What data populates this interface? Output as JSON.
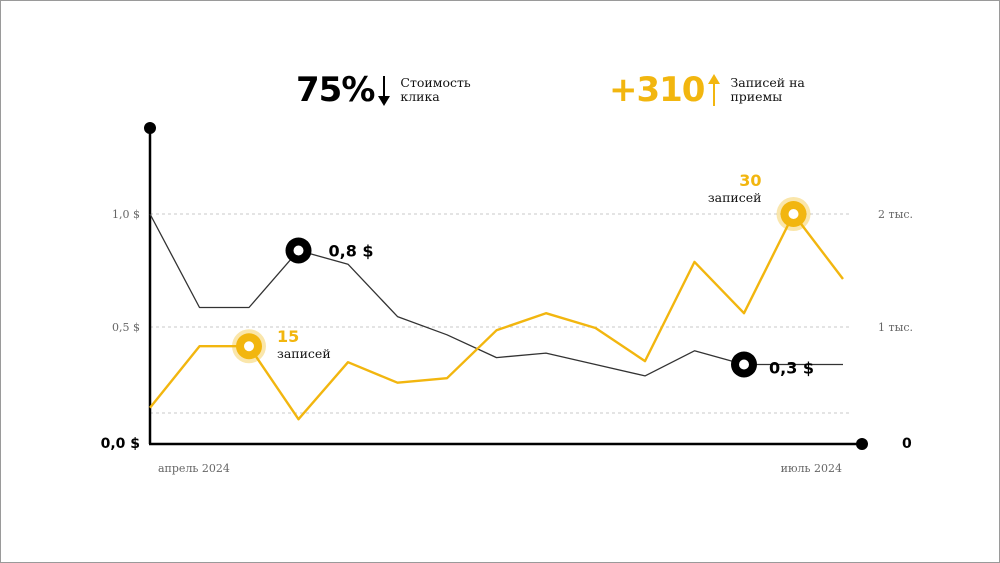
{
  "kpis": [
    {
      "value": "75%",
      "label": "Стоимость клика",
      "direction": "down",
      "color": "#000000"
    },
    {
      "value": "+310",
      "label": "Записей на приемы",
      "direction": "up",
      "color": "#f2b60f"
    }
  ],
  "chart_data": {
    "type": "line",
    "x_labels": [
      "апрель 2024",
      "июль 2024"
    ],
    "y_left": {
      "ticks": [
        "1,0 $",
        "0,5 $",
        "0,0 $"
      ],
      "range": [
        0,
        1.0
      ]
    },
    "y_right": {
      "ticks": [
        "2 тыс.",
        "1 тыс.",
        "0"
      ],
      "range": [
        0,
        2000
      ]
    },
    "grid": "dashed",
    "series": [
      {
        "axis": "left",
        "color": "#333333",
        "values": [
          1.0,
          0.59,
          0.59,
          0.84,
          0.78,
          0.55,
          0.47,
          0.37,
          0.39,
          0.34,
          0.29,
          0.4,
          0.34,
          0.34,
          0.34
        ]
      },
      {
        "axis": "right",
        "color": "#f2b60f",
        "values": [
          300,
          840,
          840,
          200,
          700,
          520,
          560,
          980,
          1130,
          1000,
          710,
          1580,
          1130,
          2000,
          1430
        ]
      }
    ],
    "annotations": [
      {
        "series": 0,
        "index": 3,
        "text": "0,8 $",
        "sub": ""
      },
      {
        "series": 0,
        "index": 12,
        "text": "0,3 $",
        "sub": ""
      },
      {
        "series": 1,
        "index": 2,
        "text": "15",
        "sub": "записей"
      },
      {
        "series": 1,
        "index": 13,
        "text": "30",
        "sub": "записей"
      }
    ]
  }
}
